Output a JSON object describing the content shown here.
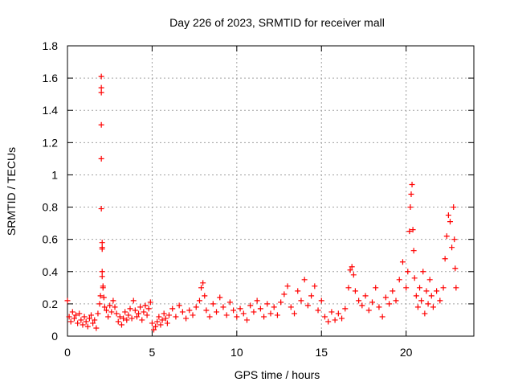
{
  "chart_data": {
    "type": "scatter",
    "title": "Day 226 of 2023, SRMTID for receiver mall",
    "xlabel": "GPS time / hours",
    "ylabel": "SRMTID / TECUs",
    "xlim": [
      0,
      24
    ],
    "ylim": [
      0,
      1.8
    ],
    "xticks": [
      0,
      5,
      10,
      15,
      20
    ],
    "xtick_labels": [
      "0",
      "5",
      "10",
      "15",
      "20"
    ],
    "yticks": [
      0,
      0.2,
      0.4,
      0.6,
      0.8,
      1,
      1.2,
      1.4,
      1.6,
      1.8
    ],
    "ytick_labels": [
      "0",
      "0.2",
      "0.4",
      "0.6",
      "0.8",
      "1",
      "1.2",
      "1.4",
      "1.6",
      "1.8"
    ],
    "grid": true,
    "marker": "+",
    "color": "#ff0000",
    "series": [
      {
        "name": "SRMTID",
        "points": [
          [
            0.0,
            0.22
          ],
          [
            0.1,
            0.12
          ],
          [
            0.2,
            0.09
          ],
          [
            0.3,
            0.15
          ],
          [
            0.4,
            0.11
          ],
          [
            0.5,
            0.13
          ],
          [
            0.6,
            0.08
          ],
          [
            0.7,
            0.14
          ],
          [
            0.8,
            0.1
          ],
          [
            0.9,
            0.07
          ],
          [
            1.0,
            0.12
          ],
          [
            1.1,
            0.09
          ],
          [
            1.2,
            0.06
          ],
          [
            1.3,
            0.11
          ],
          [
            1.4,
            0.13
          ],
          [
            1.5,
            0.08
          ],
          [
            1.6,
            0.1
          ],
          [
            1.7,
            0.05
          ],
          [
            1.8,
            0.14
          ],
          [
            1.9,
            0.2
          ],
          [
            1.95,
            0.25
          ],
          [
            2.0,
            1.61
          ],
          [
            2.0,
            1.54
          ],
          [
            2.0,
            1.51
          ],
          [
            2.0,
            1.31
          ],
          [
            2.0,
            1.1
          ],
          [
            2.0,
            0.79
          ],
          [
            2.05,
            0.58
          ],
          [
            2.05,
            0.55
          ],
          [
            2.05,
            0.54
          ],
          [
            2.05,
            0.4
          ],
          [
            2.05,
            0.37
          ],
          [
            2.1,
            0.31
          ],
          [
            2.1,
            0.3
          ],
          [
            2.15,
            0.24
          ],
          [
            2.2,
            0.18
          ],
          [
            2.3,
            0.16
          ],
          [
            2.4,
            0.12
          ],
          [
            2.5,
            0.19
          ],
          [
            2.6,
            0.15
          ],
          [
            2.7,
            0.22
          ],
          [
            2.8,
            0.18
          ],
          [
            2.9,
            0.14
          ],
          [
            3.0,
            0.09
          ],
          [
            3.1,
            0.12
          ],
          [
            3.2,
            0.07
          ],
          [
            3.3,
            0.11
          ],
          [
            3.4,
            0.15
          ],
          [
            3.5,
            0.1
          ],
          [
            3.6,
            0.13
          ],
          [
            3.7,
            0.17
          ],
          [
            3.8,
            0.11
          ],
          [
            3.9,
            0.22
          ],
          [
            4.0,
            0.16
          ],
          [
            4.1,
            0.12
          ],
          [
            4.2,
            0.14
          ],
          [
            4.3,
            0.18
          ],
          [
            4.4,
            0.1
          ],
          [
            4.5,
            0.15
          ],
          [
            4.6,
            0.19
          ],
          [
            4.7,
            0.13
          ],
          [
            4.8,
            0.17
          ],
          [
            4.9,
            0.21
          ],
          [
            5.0,
            0.08
          ],
          [
            5.1,
            0.04
          ],
          [
            5.2,
            0.06
          ],
          [
            5.3,
            0.09
          ],
          [
            5.4,
            0.12
          ],
          [
            5.5,
            0.07
          ],
          [
            5.6,
            0.1
          ],
          [
            5.7,
            0.14
          ],
          [
            5.8,
            0.11
          ],
          [
            5.9,
            0.08
          ],
          [
            6.0,
            0.13
          ],
          [
            6.2,
            0.17
          ],
          [
            6.4,
            0.12
          ],
          [
            6.6,
            0.19
          ],
          [
            6.8,
            0.15
          ],
          [
            7.0,
            0.11
          ],
          [
            7.2,
            0.16
          ],
          [
            7.4,
            0.13
          ],
          [
            7.6,
            0.18
          ],
          [
            7.8,
            0.22
          ],
          [
            7.9,
            0.3
          ],
          [
            8.0,
            0.33
          ],
          [
            8.1,
            0.25
          ],
          [
            8.2,
            0.16
          ],
          [
            8.4,
            0.12
          ],
          [
            8.6,
            0.2
          ],
          [
            8.8,
            0.15
          ],
          [
            9.0,
            0.24
          ],
          [
            9.2,
            0.18
          ],
          [
            9.4,
            0.13
          ],
          [
            9.6,
            0.21
          ],
          [
            9.8,
            0.16
          ],
          [
            10.0,
            0.12
          ],
          [
            10.2,
            0.17
          ],
          [
            10.4,
            0.14
          ],
          [
            10.6,
            0.1
          ],
          [
            10.8,
            0.19
          ],
          [
            11.0,
            0.15
          ],
          [
            11.2,
            0.22
          ],
          [
            11.4,
            0.17
          ],
          [
            11.6,
            0.12
          ],
          [
            11.8,
            0.2
          ],
          [
            12.0,
            0.14
          ],
          [
            12.2,
            0.18
          ],
          [
            12.4,
            0.13
          ],
          [
            12.6,
            0.21
          ],
          [
            12.8,
            0.26
          ],
          [
            13.0,
            0.31
          ],
          [
            13.2,
            0.18
          ],
          [
            13.4,
            0.14
          ],
          [
            13.6,
            0.28
          ],
          [
            13.8,
            0.22
          ],
          [
            14.0,
            0.35
          ],
          [
            14.2,
            0.19
          ],
          [
            14.4,
            0.25
          ],
          [
            14.6,
            0.31
          ],
          [
            14.8,
            0.16
          ],
          [
            15.0,
            0.22
          ],
          [
            15.2,
            0.12
          ],
          [
            15.4,
            0.09
          ],
          [
            15.6,
            0.15
          ],
          [
            15.8,
            0.1
          ],
          [
            16.0,
            0.14
          ],
          [
            16.2,
            0.11
          ],
          [
            16.4,
            0.17
          ],
          [
            16.6,
            0.3
          ],
          [
            16.7,
            0.41
          ],
          [
            16.8,
            0.43
          ],
          [
            16.9,
            0.38
          ],
          [
            17.0,
            0.28
          ],
          [
            17.2,
            0.22
          ],
          [
            17.4,
            0.19
          ],
          [
            17.6,
            0.25
          ],
          [
            17.8,
            0.16
          ],
          [
            18.0,
            0.21
          ],
          [
            18.2,
            0.3
          ],
          [
            18.4,
            0.18
          ],
          [
            18.6,
            0.12
          ],
          [
            18.8,
            0.24
          ],
          [
            19.0,
            0.2
          ],
          [
            19.2,
            0.28
          ],
          [
            19.4,
            0.22
          ],
          [
            19.6,
            0.35
          ],
          [
            19.8,
            0.46
          ],
          [
            20.0,
            0.3
          ],
          [
            20.1,
            0.4
          ],
          [
            20.2,
            0.65
          ],
          [
            20.25,
            0.8
          ],
          [
            20.3,
            0.88
          ],
          [
            20.35,
            0.94
          ],
          [
            20.4,
            0.66
          ],
          [
            20.45,
            0.53
          ],
          [
            20.5,
            0.36
          ],
          [
            20.6,
            0.25
          ],
          [
            20.7,
            0.18
          ],
          [
            20.8,
            0.3
          ],
          [
            20.9,
            0.22
          ],
          [
            21.0,
            0.4
          ],
          [
            21.1,
            0.14
          ],
          [
            21.2,
            0.28
          ],
          [
            21.3,
            0.2
          ],
          [
            21.4,
            0.35
          ],
          [
            21.5,
            0.25
          ],
          [
            21.6,
            0.18
          ],
          [
            21.8,
            0.28
          ],
          [
            22.0,
            0.22
          ],
          [
            22.2,
            0.3
          ],
          [
            22.3,
            0.48
          ],
          [
            22.4,
            0.62
          ],
          [
            22.5,
            0.75
          ],
          [
            22.6,
            0.71
          ],
          [
            22.7,
            0.55
          ],
          [
            22.8,
            0.8
          ],
          [
            22.85,
            0.6
          ],
          [
            22.9,
            0.42
          ],
          [
            22.95,
            0.3
          ]
        ]
      }
    ]
  }
}
